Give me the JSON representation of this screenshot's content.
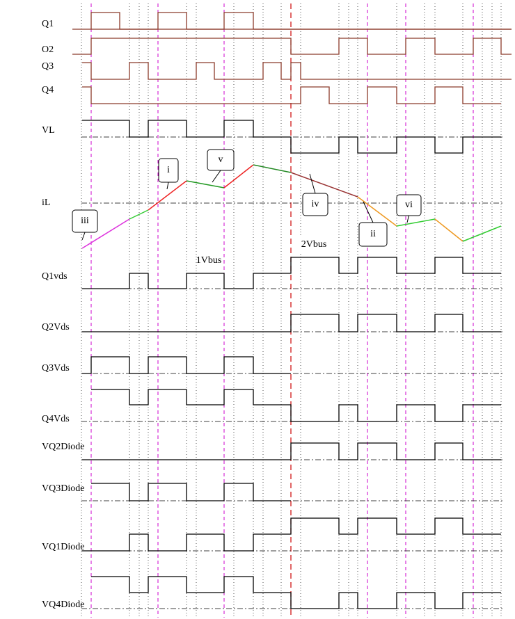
{
  "signals": [
    "Q1",
    "O2",
    "Q3",
    "Q4",
    "VL",
    "iL",
    "Q1vds",
    "Q2Vds",
    "Q3Vds",
    "Q4Vds",
    "VQ2Diode",
    "VQ3Diode",
    "VQ1Diode",
    "VQ4Diode"
  ],
  "callouts": [
    "i",
    "v",
    "iii",
    "iv",
    "ii",
    "vi"
  ],
  "levels": [
    "1Vbus",
    "2Vbus"
  ]
}
